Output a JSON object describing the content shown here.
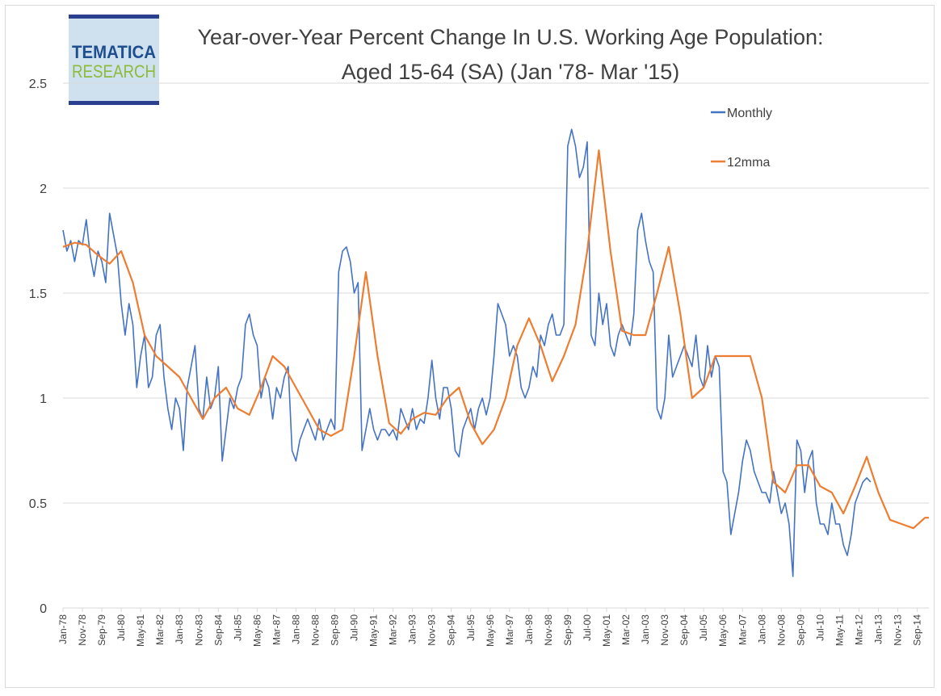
{
  "logo": {
    "line1": "TEMATICA",
    "line2": "RESEARCH"
  },
  "colors": {
    "monthly": "#4472c4",
    "mma": "#ed7d31",
    "grid": "#d9d9d9",
    "text": "#404040",
    "logo_blue": "#1f4e8f",
    "logo_green": "#8dbb3a",
    "logo_bar": "#2b3f8f"
  },
  "chart_data": {
    "type": "line",
    "title": "Year-over-Year Percent Change In U.S. Working Age Population:",
    "subtitle": "Aged 15-64 (SA) (Jan '78- Mar '15)",
    "xlabel": "",
    "ylabel": "",
    "ylim": [
      0,
      2.5
    ],
    "yticks": [
      "0",
      "0.5",
      "1",
      "1.5",
      "2",
      "2.5"
    ],
    "x_start": "Jan-78",
    "x_end": "Mar-15",
    "grid": true,
    "legend_position": "top-right",
    "xtick_labels": [
      "Jan-78",
      "Nov-78",
      "Sep-79",
      "Jul-80",
      "May-81",
      "Mar-82",
      "Jan-83",
      "Nov-83",
      "Sep-84",
      "Jul-85",
      "May-86",
      "Mar-87",
      "Jan-88",
      "Nov-88",
      "Sep-89",
      "Jul-90",
      "May-91",
      "Mar-92",
      "Jan-93",
      "Nov-93",
      "Sep-94",
      "Jul-95",
      "May-96",
      "Mar-97",
      "Jan-98",
      "Nov-98",
      "Sep-99",
      "Jul-00",
      "May-01",
      "Mar-02",
      "Jan-03",
      "Nov-03",
      "Sep-04",
      "Jul-05",
      "May-06",
      "Mar-07",
      "Jan-08",
      "Nov-08",
      "Sep-09",
      "Jul-10",
      "May-11",
      "Mar-12",
      "Jan-13",
      "Nov-13",
      "Sep-14"
    ],
    "series": [
      {
        "name": "Monthly",
        "points": [
          [
            "Jan-78",
            1.8
          ],
          [
            "Mar-78",
            1.7
          ],
          [
            "May-78",
            1.75
          ],
          [
            "Jul-78",
            1.65
          ],
          [
            "Sep-78",
            1.75
          ],
          [
            "Nov-78",
            1.73
          ],
          [
            "Jan-79",
            1.85
          ],
          [
            "Mar-79",
            1.68
          ],
          [
            "May-79",
            1.58
          ],
          [
            "Jul-79",
            1.7
          ],
          [
            "Sep-79",
            1.65
          ],
          [
            "Nov-79",
            1.55
          ],
          [
            "Jan-80",
            1.88
          ],
          [
            "Mar-80",
            1.78
          ],
          [
            "May-80",
            1.68
          ],
          [
            "Jul-80",
            1.45
          ],
          [
            "Sep-80",
            1.3
          ],
          [
            "Nov-80",
            1.45
          ],
          [
            "Jan-81",
            1.35
          ],
          [
            "Mar-81",
            1.05
          ],
          [
            "May-81",
            1.2
          ],
          [
            "Jul-81",
            1.3
          ],
          [
            "Sep-81",
            1.05
          ],
          [
            "Nov-81",
            1.1
          ],
          [
            "Jan-82",
            1.3
          ],
          [
            "Mar-82",
            1.35
          ],
          [
            "May-82",
            1.1
          ],
          [
            "Jul-82",
            0.95
          ],
          [
            "Sep-82",
            0.85
          ],
          [
            "Nov-82",
            1.0
          ],
          [
            "Jan-83",
            0.95
          ],
          [
            "Mar-83",
            0.75
          ],
          [
            "May-83",
            1.05
          ],
          [
            "Jul-83",
            1.15
          ],
          [
            "Sep-83",
            1.25
          ],
          [
            "Nov-83",
            0.95
          ],
          [
            "Jan-84",
            0.9
          ],
          [
            "Mar-84",
            1.1
          ],
          [
            "May-84",
            0.95
          ],
          [
            "Jul-84",
            1.0
          ],
          [
            "Sep-84",
            1.15
          ],
          [
            "Nov-84",
            0.7
          ],
          [
            "Jan-85",
            0.85
          ],
          [
            "Mar-85",
            1.0
          ],
          [
            "May-85",
            0.95
          ],
          [
            "Jul-85",
            1.05
          ],
          [
            "Sep-85",
            1.1
          ],
          [
            "Nov-85",
            1.35
          ],
          [
            "Jan-86",
            1.4
          ],
          [
            "Mar-86",
            1.3
          ],
          [
            "May-86",
            1.25
          ],
          [
            "Jul-86",
            1.0
          ],
          [
            "Sep-86",
            1.1
          ],
          [
            "Nov-86",
            1.05
          ],
          [
            "Jan-87",
            0.9
          ],
          [
            "Mar-87",
            1.05
          ],
          [
            "May-87",
            1.0
          ],
          [
            "Jul-87",
            1.1
          ],
          [
            "Sep-87",
            1.15
          ],
          [
            "Nov-87",
            0.75
          ],
          [
            "Jan-88",
            0.7
          ],
          [
            "Mar-88",
            0.8
          ],
          [
            "May-88",
            0.85
          ],
          [
            "Jul-88",
            0.9
          ],
          [
            "Sep-88",
            0.85
          ],
          [
            "Nov-88",
            0.8
          ],
          [
            "Jan-89",
            0.9
          ],
          [
            "Mar-89",
            0.8
          ],
          [
            "May-89",
            0.85
          ],
          [
            "Jul-89",
            0.9
          ],
          [
            "Sep-89",
            0.85
          ],
          [
            "Nov-89",
            1.6
          ],
          [
            "Jan-90",
            1.7
          ],
          [
            "Mar-90",
            1.72
          ],
          [
            "May-90",
            1.65
          ],
          [
            "Jul-90",
            1.5
          ],
          [
            "Sep-90",
            1.55
          ],
          [
            "Nov-90",
            0.75
          ],
          [
            "Jan-91",
            0.85
          ],
          [
            "Mar-91",
            0.95
          ],
          [
            "May-91",
            0.85
          ],
          [
            "Jul-91",
            0.8
          ],
          [
            "Sep-91",
            0.85
          ],
          [
            "Nov-91",
            0.85
          ],
          [
            "Jan-92",
            0.82
          ],
          [
            "Mar-92",
            0.85
          ],
          [
            "May-92",
            0.8
          ],
          [
            "Jul-92",
            0.95
          ],
          [
            "Sep-92",
            0.9
          ],
          [
            "Nov-92",
            0.85
          ],
          [
            "Jan-93",
            0.95
          ],
          [
            "Mar-93",
            0.85
          ],
          [
            "May-93",
            0.9
          ],
          [
            "Jul-93",
            0.88
          ],
          [
            "Sep-93",
            1.0
          ],
          [
            "Nov-93",
            1.18
          ],
          [
            "Jan-94",
            1.0
          ],
          [
            "Mar-94",
            0.9
          ],
          [
            "May-94",
            1.05
          ],
          [
            "Jul-94",
            1.05
          ],
          [
            "Sep-94",
            0.95
          ],
          [
            "Nov-94",
            0.75
          ],
          [
            "Jan-95",
            0.72
          ],
          [
            "Mar-95",
            0.85
          ],
          [
            "May-95",
            0.9
          ],
          [
            "Jul-95",
            0.95
          ],
          [
            "Sep-95",
            0.85
          ],
          [
            "Nov-95",
            0.95
          ],
          [
            "Jan-96",
            1.0
          ],
          [
            "Mar-96",
            0.92
          ],
          [
            "May-96",
            1.0
          ],
          [
            "Jul-96",
            1.2
          ],
          [
            "Sep-96",
            1.45
          ],
          [
            "Nov-96",
            1.4
          ],
          [
            "Jan-97",
            1.35
          ],
          [
            "Mar-97",
            1.2
          ],
          [
            "May-97",
            1.25
          ],
          [
            "Jul-97",
            1.2
          ],
          [
            "Sep-97",
            1.05
          ],
          [
            "Nov-97",
            1.0
          ],
          [
            "Jan-98",
            1.05
          ],
          [
            "Mar-98",
            1.15
          ],
          [
            "May-98",
            1.1
          ],
          [
            "Jul-98",
            1.3
          ],
          [
            "Sep-98",
            1.25
          ],
          [
            "Nov-98",
            1.35
          ],
          [
            "Jan-99",
            1.4
          ],
          [
            "Mar-99",
            1.3
          ],
          [
            "May-99",
            1.3
          ],
          [
            "Jul-99",
            1.35
          ],
          [
            "Sep-99",
            2.2
          ],
          [
            "Nov-99",
            2.28
          ],
          [
            "Jan-00",
            2.2
          ],
          [
            "Mar-00",
            2.05
          ],
          [
            "May-00",
            2.1
          ],
          [
            "Jul-00",
            2.22
          ],
          [
            "Sep-00",
            1.3
          ],
          [
            "Nov-00",
            1.25
          ],
          [
            "Jan-01",
            1.5
          ],
          [
            "Mar-01",
            1.35
          ],
          [
            "May-01",
            1.45
          ],
          [
            "Jul-01",
            1.25
          ],
          [
            "Sep-01",
            1.2
          ],
          [
            "Nov-01",
            1.3
          ],
          [
            "Jan-02",
            1.35
          ],
          [
            "Mar-02",
            1.3
          ],
          [
            "May-02",
            1.25
          ],
          [
            "Jul-02",
            1.4
          ],
          [
            "Sep-02",
            1.8
          ],
          [
            "Nov-02",
            1.88
          ],
          [
            "Jan-03",
            1.75
          ],
          [
            "Mar-03",
            1.65
          ],
          [
            "May-03",
            1.6
          ],
          [
            "Jul-03",
            0.95
          ],
          [
            "Sep-03",
            0.9
          ],
          [
            "Nov-03",
            1.0
          ],
          [
            "Jan-04",
            1.3
          ],
          [
            "Mar-04",
            1.1
          ],
          [
            "May-04",
            1.15
          ],
          [
            "Jul-04",
            1.2
          ],
          [
            "Sep-04",
            1.25
          ],
          [
            "Nov-04",
            1.2
          ],
          [
            "Jan-05",
            1.15
          ],
          [
            "Mar-05",
            1.3
          ],
          [
            "May-05",
            1.1
          ],
          [
            "Jul-05",
            1.05
          ],
          [
            "Sep-05",
            1.25
          ],
          [
            "Nov-05",
            1.1
          ],
          [
            "Jan-06",
            1.2
          ],
          [
            "Mar-06",
            1.15
          ],
          [
            "May-06",
            0.65
          ],
          [
            "Jul-06",
            0.6
          ],
          [
            "Sep-06",
            0.35
          ],
          [
            "Nov-06",
            0.45
          ],
          [
            "Jan-07",
            0.55
          ],
          [
            "Mar-07",
            0.7
          ],
          [
            "May-07",
            0.8
          ],
          [
            "Jul-07",
            0.75
          ],
          [
            "Sep-07",
            0.65
          ],
          [
            "Nov-07",
            0.6
          ],
          [
            "Jan-08",
            0.55
          ],
          [
            "Mar-08",
            0.55
          ],
          [
            "May-08",
            0.5
          ],
          [
            "Jul-08",
            0.65
          ],
          [
            "Sep-08",
            0.55
          ],
          [
            "Nov-08",
            0.45
          ],
          [
            "Jan-09",
            0.5
          ],
          [
            "Mar-09",
            0.4
          ],
          [
            "May-09",
            0.15
          ],
          [
            "Jul-09",
            0.8
          ],
          [
            "Sep-09",
            0.75
          ],
          [
            "Nov-09",
            0.55
          ],
          [
            "Jan-10",
            0.7
          ],
          [
            "Mar-10",
            0.75
          ],
          [
            "May-10",
            0.5
          ],
          [
            "Jul-10",
            0.4
          ],
          [
            "Sep-10",
            0.4
          ],
          [
            "Nov-10",
            0.35
          ],
          [
            "Jan-11",
            0.5
          ],
          [
            "Mar-11",
            0.4
          ],
          [
            "May-11",
            0.4
          ],
          [
            "Jul-11",
            0.3
          ],
          [
            "Sep-11",
            0.25
          ],
          [
            "Nov-11",
            0.35
          ],
          [
            "Jan-12",
            0.5
          ],
          [
            "Mar-12",
            0.55
          ],
          [
            "May-12",
            0.6
          ],
          [
            "Jul-12",
            0.62
          ],
          [
            "Sep-12",
            0.6
          ]
        ]
      },
      {
        "name": "12mma",
        "points": [
          [
            "Jan-78",
            1.72
          ],
          [
            "Jul-78",
            1.74
          ],
          [
            "Jan-79",
            1.73
          ],
          [
            "Jul-79",
            1.68
          ],
          [
            "Jan-80",
            1.64
          ],
          [
            "Jul-80",
            1.7
          ],
          [
            "Jan-81",
            1.55
          ],
          [
            "Jul-81",
            1.3
          ],
          [
            "Jan-82",
            1.2
          ],
          [
            "Jul-82",
            1.15
          ],
          [
            "Jan-83",
            1.1
          ],
          [
            "Jul-83",
            1.0
          ],
          [
            "Jan-84",
            0.9
          ],
          [
            "Jul-84",
            1.0
          ],
          [
            "Jan-85",
            1.05
          ],
          [
            "Jul-85",
            0.95
          ],
          [
            "Jan-86",
            0.92
          ],
          [
            "Jul-86",
            1.05
          ],
          [
            "Jan-87",
            1.2
          ],
          [
            "Jul-87",
            1.15
          ],
          [
            "Jan-88",
            1.05
          ],
          [
            "Jul-88",
            0.95
          ],
          [
            "Jan-89",
            0.85
          ],
          [
            "Jul-89",
            0.82
          ],
          [
            "Jan-90",
            0.85
          ],
          [
            "Jul-90",
            1.2
          ],
          [
            "Jan-91",
            1.6
          ],
          [
            "Jul-91",
            1.2
          ],
          [
            "Jan-92",
            0.88
          ],
          [
            "Jul-92",
            0.83
          ],
          [
            "Jan-93",
            0.9
          ],
          [
            "Jul-93",
            0.93
          ],
          [
            "Jan-94",
            0.92
          ],
          [
            "Jul-94",
            1.0
          ],
          [
            "Jan-95",
            1.05
          ],
          [
            "Jul-95",
            0.88
          ],
          [
            "Jan-96",
            0.78
          ],
          [
            "Jul-96",
            0.85
          ],
          [
            "Jan-97",
            1.0
          ],
          [
            "Jul-97",
            1.25
          ],
          [
            "Jan-98",
            1.38
          ],
          [
            "Jul-98",
            1.25
          ],
          [
            "Jan-99",
            1.08
          ],
          [
            "Jul-99",
            1.2
          ],
          [
            "Jan-00",
            1.35
          ],
          [
            "Jul-00",
            1.7
          ],
          [
            "Jan-01",
            2.18
          ],
          [
            "Jul-01",
            1.7
          ],
          [
            "Jan-02",
            1.32
          ],
          [
            "Jul-02",
            1.3
          ],
          [
            "Jan-03",
            1.3
          ],
          [
            "Jul-03",
            1.5
          ],
          [
            "Jan-04",
            1.72
          ],
          [
            "Jul-04",
            1.4
          ],
          [
            "Jan-05",
            1.0
          ],
          [
            "Jul-05",
            1.05
          ],
          [
            "Jan-06",
            1.2
          ],
          [
            "Jul-06",
            1.2
          ],
          [
            "Jan-07",
            1.2
          ],
          [
            "Jul-07",
            1.2
          ],
          [
            "Jan-08",
            1.0
          ],
          [
            "Jul-08",
            0.6
          ],
          [
            "Jan-09",
            0.55
          ],
          [
            "Jul-09",
            0.68
          ],
          [
            "Jan-10",
            0.68
          ],
          [
            "Jul-10",
            0.58
          ],
          [
            "Jan-11",
            0.55
          ],
          [
            "Jul-11",
            0.45
          ],
          [
            "Jan-12",
            0.58
          ],
          [
            "Jul-12",
            0.72
          ],
          [
            "Jan-13",
            0.55
          ],
          [
            "Jul-13",
            0.42
          ],
          [
            "Jan-14",
            0.4
          ],
          [
            "Jul-14",
            0.38
          ],
          [
            "Jan-15",
            0.43
          ],
          [
            "Mar-15",
            0.43
          ]
        ]
      }
    ]
  }
}
